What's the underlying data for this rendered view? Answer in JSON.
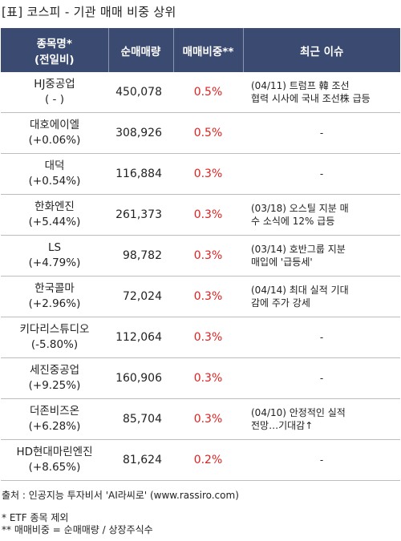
{
  "title": "[표] 코스피 - 기관 매매 비중 상위",
  "headers": {
    "name_line1": "종목명*",
    "name_line2": "(전일비)",
    "qty": "순매매량",
    "ratio": "매매비중**",
    "issue": "최근 이슈"
  },
  "rows": [
    {
      "name": "HJ중공업",
      "change": "( - )",
      "qty": "450,078",
      "ratio": "0.5%",
      "issue1": "(04/11) 트럼프 韓 조선",
      "issue2": "협력 시사에 국내 조선株 급등"
    },
    {
      "name": "대호에이엘",
      "change": "(+0.06%)",
      "qty": "308,926",
      "ratio": "0.5%",
      "issue1": "-",
      "issue2": ""
    },
    {
      "name": "대덕",
      "change": "(+0.54%)",
      "qty": "116,884",
      "ratio": "0.3%",
      "issue1": "-",
      "issue2": ""
    },
    {
      "name": "한화엔진",
      "change": "(+5.44%)",
      "qty": "261,373",
      "ratio": "0.3%",
      "issue1": "(03/18) 오스틸 지분 매",
      "issue2": "수 소식에 12% 급등"
    },
    {
      "name": "LS",
      "change": "(+4.79%)",
      "qty": "98,782",
      "ratio": "0.3%",
      "issue1": "(03/14) 호반그룹 지분",
      "issue2": "매입에 '급등세'"
    },
    {
      "name": "한국콜마",
      "change": "(+2.96%)",
      "qty": "72,024",
      "ratio": "0.3%",
      "issue1": "(04/14) 최대 실적 기대",
      "issue2": "감에 주가 강세"
    },
    {
      "name": "키다리스튜디오",
      "change": "(-5.80%)",
      "qty": "112,064",
      "ratio": "0.3%",
      "issue1": "-",
      "issue2": ""
    },
    {
      "name": "세진중공업",
      "change": "(+9.25%)",
      "qty": "160,906",
      "ratio": "0.3%",
      "issue1": "-",
      "issue2": ""
    },
    {
      "name": "더존비즈온",
      "change": "(+6.28%)",
      "qty": "85,704",
      "ratio": "0.3%",
      "issue1": "(04/10) 안정적인 실적",
      "issue2": "전망…기대감↑"
    },
    {
      "name": "HD현대마린엔진",
      "change": "(+8.65%)",
      "qty": "81,624",
      "ratio": "0.2%",
      "issue1": "-",
      "issue2": ""
    }
  ],
  "notes": {
    "source": "출처 : 인공지능 투자비서 'AI라씨로' (www.rassiro.com)",
    "note1": "* ETF 종목 제외",
    "note2": "** 매매비중 = 순매매량 / 상장주식수"
  }
}
